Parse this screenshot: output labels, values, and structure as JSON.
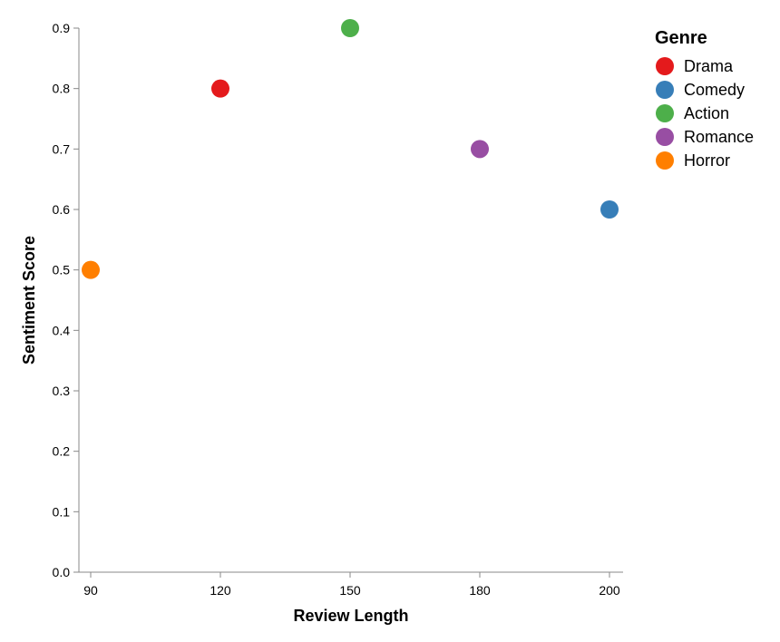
{
  "chart_data": {
    "type": "scatter",
    "title": "",
    "xlabel": "Review Length",
    "ylabel": "Sentiment Score",
    "x_ticks": [
      90,
      120,
      150,
      180,
      200
    ],
    "y_ticks": [
      0.0,
      0.1,
      0.2,
      0.3,
      0.4,
      0.5,
      0.6,
      0.7,
      0.8,
      0.9
    ],
    "y_tick_labels": [
      "0.0",
      "0.1",
      "0.2",
      "0.3",
      "0.4",
      "0.5",
      "0.6",
      "0.7",
      "0.8",
      "0.9"
    ],
    "grid": false,
    "legend": {
      "title": "Genre",
      "placement": "top-right"
    },
    "series": [
      {
        "name": "Drama",
        "color": "#e41a1c",
        "points": [
          {
            "x": 120,
            "y": 0.8
          }
        ]
      },
      {
        "name": "Comedy",
        "color": "#377eb8",
        "points": [
          {
            "x": 200,
            "y": 0.6
          }
        ]
      },
      {
        "name": "Action",
        "color": "#4daf4a",
        "points": [
          {
            "x": 150,
            "y": 0.9
          }
        ]
      },
      {
        "name": "Romance",
        "color": "#984ea3",
        "points": [
          {
            "x": 180,
            "y": 0.7
          }
        ]
      },
      {
        "name": "Horror",
        "color": "#ff7f00",
        "points": [
          {
            "x": 90,
            "y": 0.5
          }
        ]
      }
    ]
  }
}
